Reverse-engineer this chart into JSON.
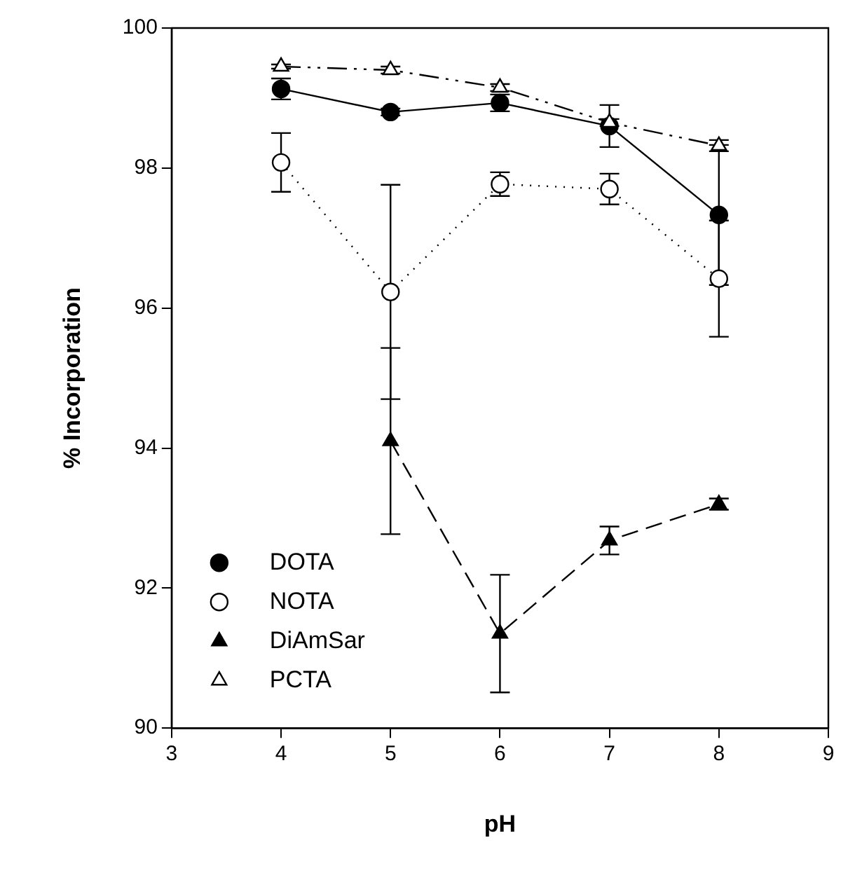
{
  "chart_data": {
    "type": "line",
    "xlabel": "pH",
    "ylabel": "% Incorporation",
    "xlim": [
      3,
      9
    ],
    "xticks": [
      3,
      4,
      5,
      6,
      7,
      8,
      9
    ],
    "ylim": [
      90,
      100
    ],
    "yticks": [
      90,
      92,
      94,
      96,
      98,
      100
    ],
    "grid": false,
    "legend": "bottom left",
    "x": [
      4,
      5,
      6,
      7,
      8
    ],
    "series": [
      {
        "name": "DOTA",
        "color": "#000000",
        "marker": "circle",
        "line_style": "solid",
        "values": [
          99.13,
          98.8,
          98.93,
          98.6,
          97.33
        ],
        "errors": [
          0.15,
          0.05,
          0.12,
          0.3,
          1.0
        ]
      },
      {
        "name": "NOTA",
        "color": "#000000",
        "colors": [
          "#ffffff",
          "#ffffff",
          "#ffffff",
          "#ffffff",
          "#ffffff"
        ],
        "marker": "circle",
        "line_style": "dotted",
        "values": [
          98.08,
          96.23,
          97.77,
          97.7,
          96.42
        ],
        "errors": [
          0.42,
          1.53,
          0.17,
          0.22,
          0.83
        ]
      },
      {
        "name": "DiAmSar",
        "color": "#000000",
        "marker": "triangle",
        "line_style": "dashed",
        "values": [
          null,
          94.1,
          91.35,
          92.68,
          93.2
        ],
        "errors": [
          null,
          1.33,
          0.84,
          0.2,
          0.08
        ]
      },
      {
        "name": "PCTA",
        "color": "#000000",
        "colors": [
          "#ffffff",
          "#ffffff",
          "#ffffff",
          "#ffffff",
          "#ffffff"
        ],
        "marker": "triangle",
        "line_style": "dashdot",
        "values": [
          99.45,
          99.4,
          99.15,
          98.65,
          98.32
        ],
        "errors": [
          0.03,
          0.05,
          0.05,
          0.05,
          0.08
        ]
      }
    ]
  }
}
